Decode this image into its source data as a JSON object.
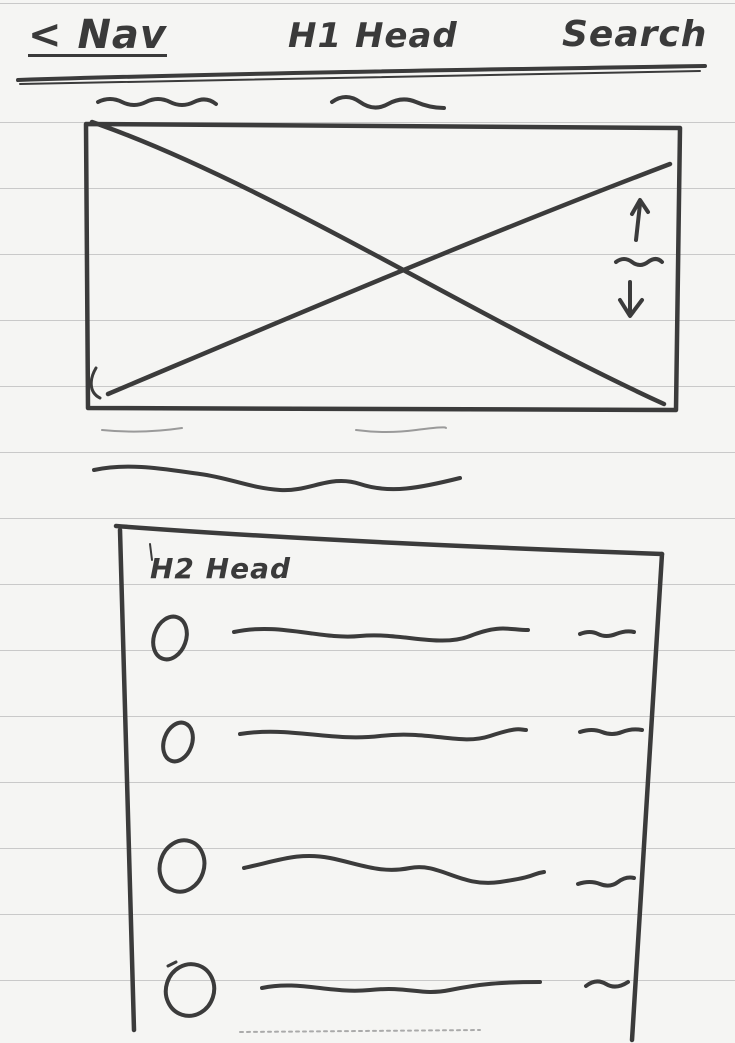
{
  "header": {
    "back_label": "< Nav",
    "title": "H1 Head",
    "search_label": "Search"
  },
  "list_section": {
    "title": "H2 Head",
    "rows": 4
  }
}
